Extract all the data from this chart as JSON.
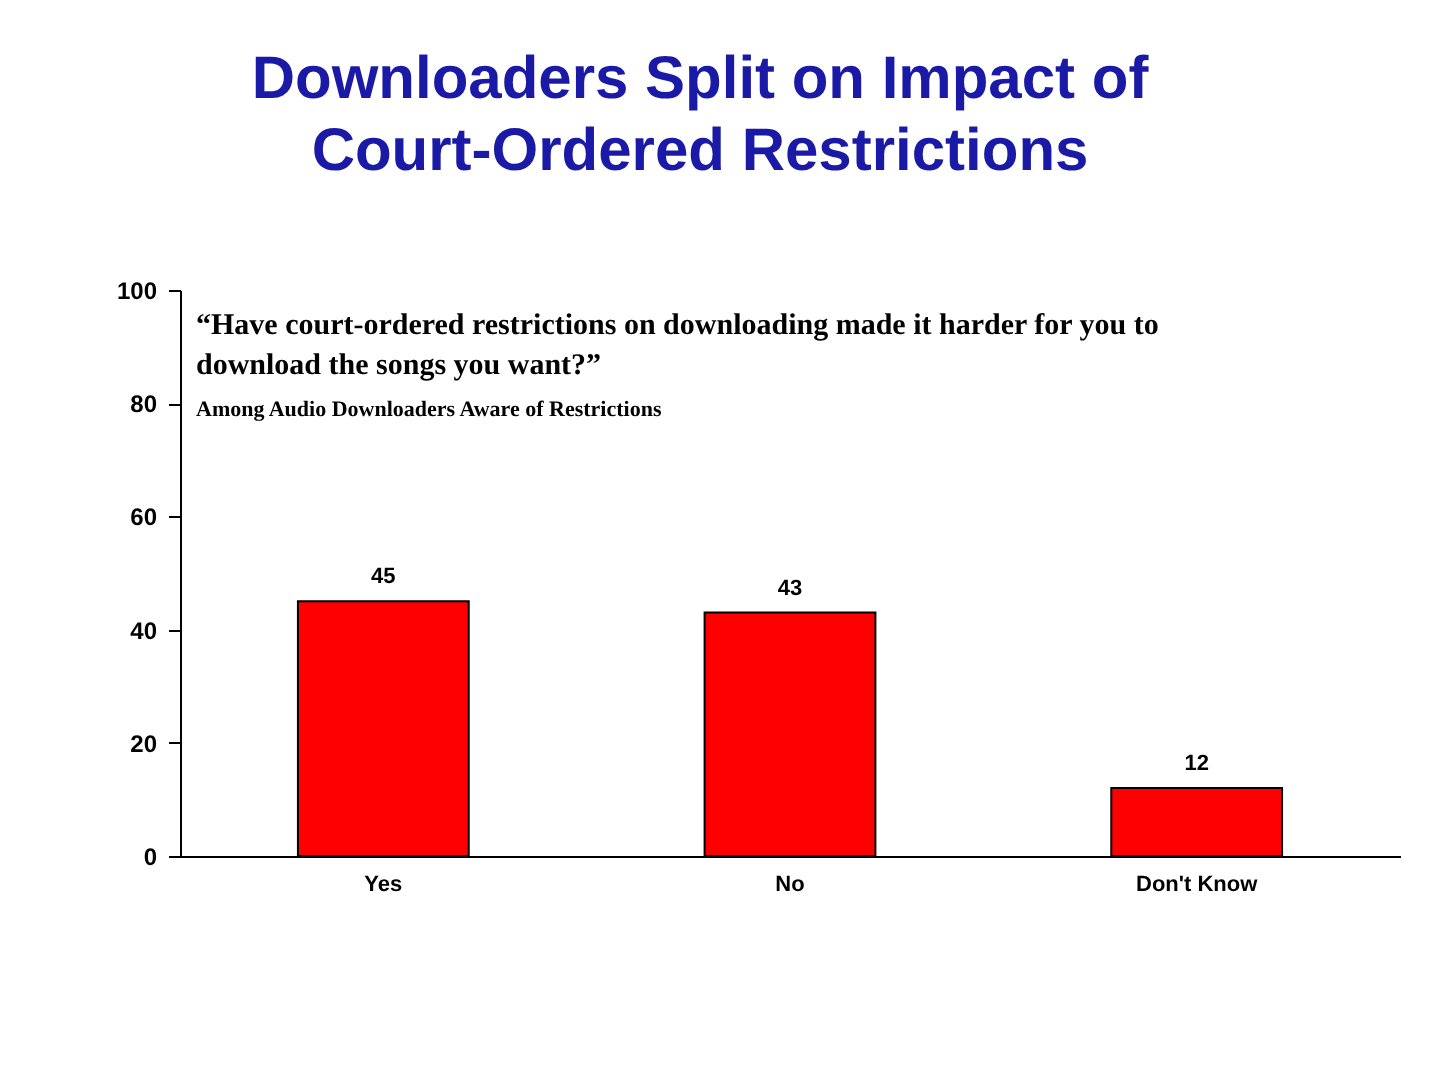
{
  "chart_data": {
    "type": "bar",
    "title": "Downloaders Split on Impact of Court-Ordered Restrictions",
    "annotations": [
      "“Have court-ordered restrictions on downloading made it harder for you to download the songs you want?”",
      "Among Audio Downloaders Aware of Restrictions"
    ],
    "categories": [
      "Yes",
      "No",
      "Don't Know"
    ],
    "values": [
      45,
      43,
      12
    ],
    "color": "#ff0000",
    "ylim": [
      0,
      100
    ],
    "yticks": [
      0,
      20,
      40,
      60,
      80,
      100
    ],
    "data_labels": true,
    "grid": false
  }
}
